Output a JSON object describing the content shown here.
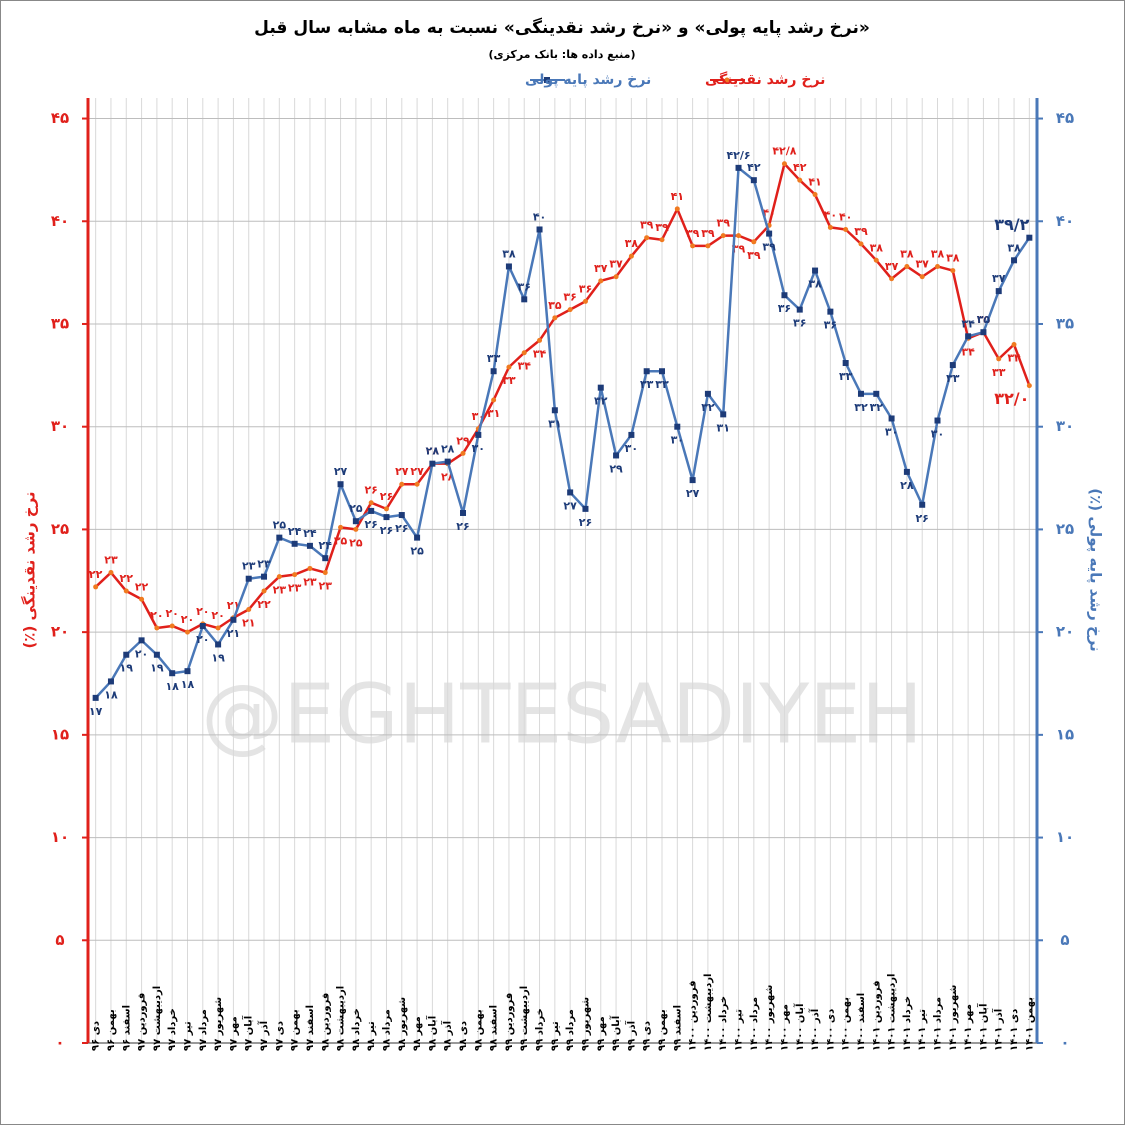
{
  "chart_data": {
    "type": "line",
    "title": "«نرخ رشد پایه پولی» و «نرخ رشد نقدینگی» نسبت به ماه مشابه سال قبل",
    "subtitle": "(منبع داده ها: بانک مرکزی)",
    "ylabel": "نرخ رشد نقدینگی (٪)",
    "y2label": "نرخ رشد پایه پولی (٪)",
    "watermark": "@EGHTESADIYEH",
    "legend": "top",
    "grid": true,
    "categories": [
      "دی ۹۶",
      "بهمن ۹۶",
      "اسفند ۹۶",
      "فروردین ۹۷",
      "اردیبهشت ۹۷",
      "خرداد ۹۷",
      "تیر ۹۷",
      "مرداد ۹۷",
      "شهریور ۹۷",
      "مهر ۹۷",
      "آبان ۹۷",
      "آذر ۹۷",
      "دی ۹۷",
      "بهمن ۹۷",
      "اسفند ۹۷",
      "فروردین ۹۸",
      "اردیبهشت ۹۸",
      "خرداد ۹۸",
      "تیر ۹۸",
      "مرداد ۹۸",
      "شهریور ۹۸",
      "مهر ۹۸",
      "آبان ۹۸",
      "آذر ۹۸",
      "دی ۹۸",
      "بهمن ۹۸",
      "اسفند ۹۸",
      "فروردین ۹۹",
      "اردیبهشت ۹۹",
      "خرداد ۹۹",
      "تیر ۹۹",
      "مرداد ۹۹",
      "شهریور ۹۹",
      "مهر ۹۹",
      "آبان ۹۹",
      "آذر ۹۹",
      "دی ۹۹",
      "بهمن ۹۹",
      "اسفند ۹۹",
      "فروردین ۱۴۰۰",
      "اردیبهشت ۱۴۰۰",
      "خرداد ۱۴۰۰",
      "تیر ۱۴۰۰",
      "مرداد ۱۴۰۰",
      "شهریور ۱۴۰۰",
      "مهر ۱۴۰۰",
      "آبان ۱۴۰۰",
      "آذر ۱۴۰۰",
      "دی ۱۴۰۰",
      "بهمن ۱۴۰۰",
      "اسفند ۱۴۰۰",
      "فروردین ۱۴۰۱",
      "اردیبهشت ۱۴۰۱",
      "خرداد ۱۴۰۱",
      "تیر ۱۴۰۱",
      "مرداد ۱۴۰۱",
      "شهریور ۱۴۰۱",
      "مهر ۱۴۰۱",
      "آبان ۱۴۰۱",
      "آذر ۱۴۰۱",
      "دی ۱۴۰۱",
      "بهمن ۱۴۰۱"
    ],
    "series": [
      {
        "name": "نرخ رشد نقدینگی",
        "color": "#e0201b",
        "marker_color": "#f07a20",
        "axis": "y",
        "values": [
          22.2,
          22.9,
          22.0,
          21.6,
          20.2,
          20.3,
          20.0,
          20.4,
          20.2,
          20.7,
          21.1,
          22.0,
          22.7,
          22.8,
          23.1,
          22.9,
          25.1,
          25.0,
          26.3,
          26.0,
          27.2,
          27.2,
          28.2,
          28.2,
          28.7,
          29.9,
          31.3,
          32.9,
          33.6,
          34.2,
          35.3,
          35.7,
          36.1,
          37.1,
          37.3,
          38.3,
          39.2,
          39.1,
          40.6,
          38.8,
          38.8,
          39.3,
          39.3,
          39.0,
          39.8,
          42.8,
          42.0,
          41.3,
          39.7,
          39.6,
          38.9,
          38.1,
          37.2,
          37.8,
          37.3,
          37.8,
          37.6,
          34.3,
          34.6,
          33.3,
          34.0,
          32.0
        ],
        "value_labels": [
          "۲۲",
          "۲۳",
          "۲۲",
          "۲۲",
          "۲۰",
          "۲۰",
          "۲۰",
          "۲۰",
          "۲۰",
          "۲۱",
          "۲۱",
          "۲۲",
          "۲۳",
          "۲۳",
          "۲۳",
          "۲۳",
          "۲۵",
          "۲۵",
          "۲۶",
          "۲۶",
          "۲۷",
          "۲۷",
          "۲۸",
          "۲۸",
          "۲۹",
          "۳۰",
          "۳۱",
          "۳۳",
          "۳۴",
          "۳۴",
          "۳۵",
          "۳۶",
          "۳۶",
          "۳۷",
          "۳۷",
          "۳۸",
          "۳۹",
          "۳۹",
          "۴۱",
          "۳۹",
          "۳۹",
          "۳۹",
          "۳۹",
          "۳۹",
          "۴۰",
          "۴۲/۸",
          "۴۲",
          "۴۱",
          "۴۰",
          "۴۰",
          "۳۹",
          "۳۸",
          "۳۷",
          "۳۸",
          "۳۷",
          "۳۸",
          "۳۸",
          "۳۴",
          "۳۵",
          "۳۳",
          "۳۴",
          "۳۲/۰"
        ]
      },
      {
        "name": "نرخ رشد پایه پولی",
        "color": "#4a78b8",
        "marker_color": "#1d3b78",
        "axis": "y2",
        "values": [
          16.8,
          17.6,
          18.9,
          19.6,
          18.9,
          18.0,
          18.1,
          20.3,
          19.4,
          20.6,
          22.6,
          22.7,
          24.6,
          24.3,
          24.2,
          23.6,
          27.2,
          25.4,
          25.9,
          25.6,
          25.7,
          24.6,
          28.2,
          28.3,
          25.8,
          29.6,
          32.7,
          37.8,
          36.2,
          39.6,
          30.8,
          26.8,
          26.0,
          31.9,
          28.6,
          29.6,
          32.7,
          32.7,
          30.0,
          27.4,
          31.6,
          30.6,
          42.6,
          42.0,
          39.4,
          36.4,
          35.7,
          37.6,
          35.6,
          33.1,
          31.6,
          31.6,
          30.4,
          27.8,
          26.2,
          30.3,
          33.0,
          34.4,
          34.6,
          36.6,
          38.1,
          39.2
        ],
        "value_labels": [
          "۱۷",
          "۱۸",
          "۱۹",
          "۲۰",
          "۱۹",
          "۱۸",
          "۱۸",
          "۲۰",
          "۱۹",
          "۲۱",
          "۲۳",
          "۲۳",
          "۲۵",
          "۲۴",
          "۲۴",
          "۲۴",
          "۲۷",
          "۲۵",
          "۲۶",
          "۲۶",
          "۲۶",
          "۲۵",
          "۲۸",
          "۲۸",
          "۲۶",
          "۳۰",
          "۳۳",
          "۳۸",
          "۳۶",
          "۴۰",
          "۳۱",
          "۲۷",
          "۲۶",
          "۳۲",
          "۲۹",
          "۳۰",
          "۳۳",
          "۳۳",
          "۳۰",
          "۲۷",
          "۳۲",
          "۳۱",
          "۴۲/۶",
          "۴۲",
          "۳۹",
          "۳۶",
          "۳۶",
          "۳۸",
          "۳۶",
          "۳۳",
          "۳۲",
          "۳۲",
          "۳۰",
          "۲۸",
          "۲۶",
          "۳۰",
          "۳۳",
          "۳۴",
          "۳۵",
          "۳۷",
          "۳۸",
          "۳۹/۲"
        ]
      }
    ],
    "ylim": [
      0,
      46
    ],
    "yticks": [
      {
        "value": 0,
        "label": "۰"
      },
      {
        "value": 5,
        "label": "۵"
      },
      {
        "value": 10,
        "label": "۱۰"
      },
      {
        "value": 15,
        "label": "۱۵"
      },
      {
        "value": 20,
        "label": "۲۰"
      },
      {
        "value": 25,
        "label": "۲۵"
      },
      {
        "value": 30,
        "label": "۳۰"
      },
      {
        "value": 35,
        "label": "۳۵"
      },
      {
        "value": 40,
        "label": "۴۰"
      },
      {
        "value": 45,
        "label": "۴۵"
      }
    ],
    "y2lim": [
      0,
      46
    ],
    "y2ticks": [
      {
        "value": 0,
        "label": "۰"
      },
      {
        "value": 5,
        "label": "۵"
      },
      {
        "value": 10,
        "label": "۱۰"
      },
      {
        "value": 15,
        "label": "۱۵"
      },
      {
        "value": 20,
        "label": "۲۰"
      },
      {
        "value": 25,
        "label": "۲۵"
      },
      {
        "value": 30,
        "label": "۳۰"
      },
      {
        "value": 35,
        "label": "۳۵"
      },
      {
        "value": 40,
        "label": "۴۰"
      },
      {
        "value": 45,
        "label": "۴۵"
      }
    ]
  }
}
